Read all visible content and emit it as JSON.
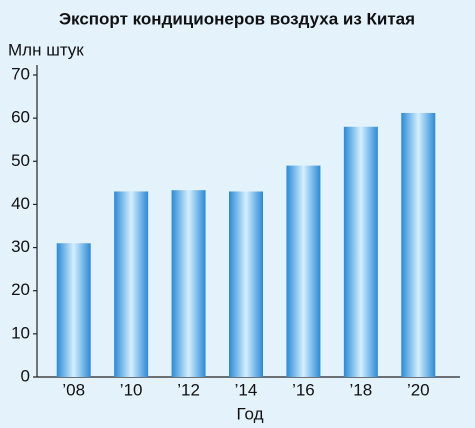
{
  "chart_data": {
    "type": "bar",
    "title": "Экспорт кондиционеров воздуха из Китая",
    "y_label": "Млн штук",
    "x_label": "Год",
    "categories": [
      "’08",
      "’10",
      "’12",
      "’14",
      "’16",
      "’18",
      "’20"
    ],
    "values": [
      31,
      43,
      43.3,
      43,
      49,
      58,
      61.2
    ],
    "color": "#2a8ad6",
    "ylim": [
      0,
      70
    ],
    "yticks": [
      0,
      10,
      20,
      30,
      40,
      50,
      60,
      70
    ],
    "grid": false
  }
}
